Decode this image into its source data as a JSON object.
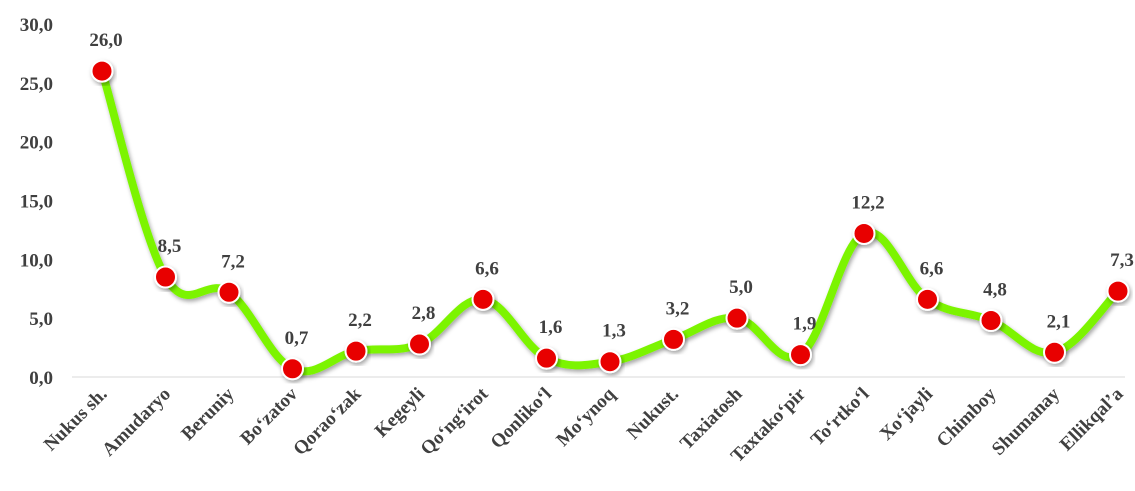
{
  "chart_data": {
    "type": "line",
    "title": "",
    "xlabel": "",
    "ylabel": "",
    "ylim": [
      0,
      30
    ],
    "yticks": [
      "0,0",
      "5,0",
      "10,0",
      "15,0",
      "20,0",
      "25,0",
      "30,0"
    ],
    "grid": false,
    "legend": "none",
    "line_color": "#7CF400",
    "marker_color": "#E80000",
    "categories": [
      "Nukus sh.",
      "Amudaryo",
      "Beruniy",
      "Bo‘zatov",
      "Qorao‘zak",
      "Kegeyli",
      "Qo‘ng‘irot",
      "Qonliko‘l",
      "Mo‘ynoq",
      "Nukust.",
      "Taxiatosh",
      "Taxtako‘pir",
      "To‘rtko‘l",
      "Xo‘jayli",
      "Chimboy",
      "Shumanay",
      "Ellikqal’a"
    ],
    "values": [
      26.0,
      8.5,
      7.2,
      0.7,
      2.2,
      2.8,
      6.6,
      1.6,
      1.3,
      3.2,
      5.0,
      1.9,
      12.2,
      6.6,
      4.8,
      2.1,
      7.3
    ],
    "value_labels": [
      "26,0",
      "8,5",
      "7,2",
      "0,7",
      "2,2",
      "2,8",
      "6,6",
      "1,6",
      "1,3",
      "3,2",
      "5,0",
      "1,9",
      "12,2",
      "6,6",
      "4,8",
      "2,1",
      "7,3"
    ]
  }
}
